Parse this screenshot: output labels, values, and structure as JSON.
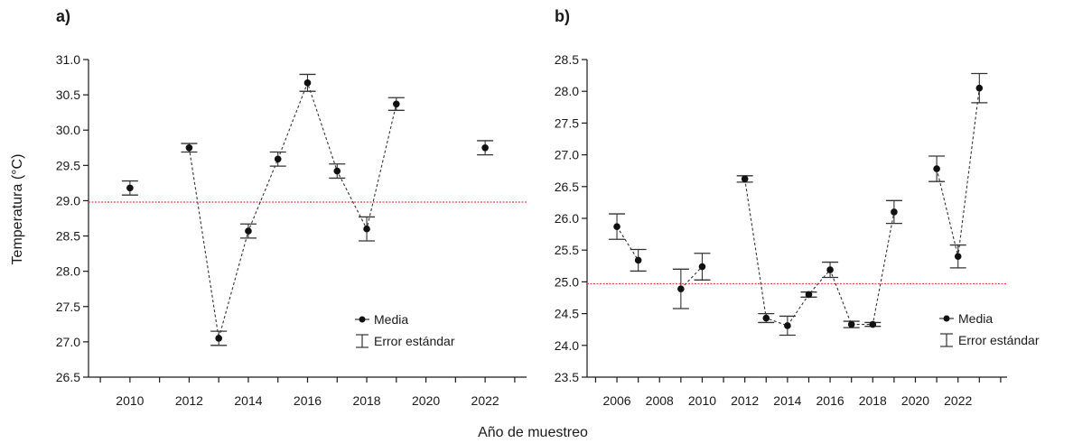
{
  "figure": {
    "xlabel": "Año de muestreo",
    "ylabel": "Temperatura (°C)"
  },
  "colors": {
    "axis": "#1a1a1a",
    "reference_line": "#e8474a",
    "marker": "#111111"
  },
  "chart_data": [
    {
      "type": "scatter",
      "panel_label": "a)",
      "xlim": [
        2008.6,
        2023.4
      ],
      "ylim": [
        26.5,
        31.0
      ],
      "xticks": [
        2010,
        2012,
        2014,
        2016,
        2018,
        2020,
        2022
      ],
      "yticks": [
        26.5,
        27.0,
        27.5,
        28.0,
        28.5,
        29.0,
        29.5,
        30.0,
        30.5,
        31.0
      ],
      "ytick_labels": [
        "26.5",
        "27.0",
        "27.5",
        "28.0",
        "28.5",
        "29.0",
        "29.5",
        "30.0",
        "30.5",
        "31.0"
      ],
      "reference_line": 28.98,
      "series": [
        {
          "name": "Media",
          "x": [
            2010,
            2012,
            2013,
            2014,
            2015,
            2016,
            2017,
            2018,
            2019,
            2022
          ],
          "y": [
            29.18,
            29.75,
            27.05,
            28.57,
            29.59,
            30.67,
            29.42,
            28.6,
            30.37,
            29.75
          ],
          "error": [
            0.1,
            0.06,
            0.1,
            0.1,
            0.1,
            0.12,
            0.1,
            0.17,
            0.09,
            0.1
          ]
        }
      ],
      "connected_segments": [
        [
          1,
          8
        ]
      ],
      "legend": {
        "position": "bottom-right",
        "entries": [
          "Media",
          "Error estándar"
        ]
      },
      "grid": false
    },
    {
      "type": "scatter",
      "panel_label": "b)",
      "xlim": [
        2004.6,
        2024.3
      ],
      "ylim": [
        23.5,
        28.5
      ],
      "xticks": [
        2006,
        2008,
        2010,
        2012,
        2014,
        2016,
        2018,
        2020,
        2022
      ],
      "yticks": [
        23.5,
        24.0,
        24.5,
        25.0,
        25.5,
        26.0,
        26.5,
        27.0,
        27.5,
        28.0,
        28.5
      ],
      "ytick_labels": [
        "23.5",
        "24.0",
        "24.5",
        "25.0",
        "25.5",
        "26.0",
        "26.5",
        "27.0",
        "27.5",
        "28.0",
        "28.5"
      ],
      "reference_line": 24.97,
      "series": [
        {
          "name": "Media",
          "x": [
            2006,
            2007,
            2009,
            2010,
            2012,
            2013,
            2014,
            2015,
            2016,
            2017,
            2018,
            2019,
            2021,
            2022,
            2023
          ],
          "y": [
            25.87,
            25.34,
            24.89,
            25.24,
            26.62,
            24.43,
            24.31,
            24.8,
            25.19,
            24.33,
            24.33,
            26.1,
            26.78,
            25.4,
            28.05
          ],
          "error": [
            0.2,
            0.17,
            0.31,
            0.21,
            0.05,
            0.07,
            0.15,
            0.04,
            0.12,
            0.05,
            0.03,
            0.18,
            0.2,
            0.18,
            0.23
          ]
        }
      ],
      "connected_segments": [
        [
          0,
          1
        ],
        [
          2,
          3
        ],
        [
          4,
          11
        ],
        [
          12,
          14
        ]
      ],
      "legend": {
        "position": "bottom-right",
        "entries": [
          "Media",
          "Error estándar"
        ]
      },
      "grid": false
    }
  ]
}
